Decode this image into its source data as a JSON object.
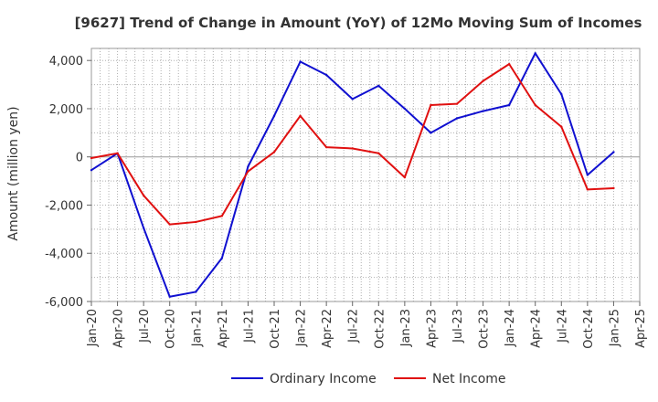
{
  "chart_data": {
    "type": "line",
    "title": "[9627]  Trend of Change in Amount (YoY) of 12Mo Moving Sum of Incomes",
    "xlabel": "",
    "ylabel": "Amount (million yen)",
    "ylim": [
      -6000,
      4500
    ],
    "yticks": [
      -6000,
      -4000,
      -2000,
      0,
      2000,
      4000
    ],
    "ytick_labels": [
      "-6,000",
      "-4,000",
      "-2,000",
      "0",
      "2,000",
      "4,000"
    ],
    "x_tick_labels": [
      "Jan-20",
      "Apr-20",
      "Jul-20",
      "Oct-20",
      "Jan-21",
      "Apr-21",
      "Jul-21",
      "Oct-21",
      "Jan-22",
      "Apr-22",
      "Jul-22",
      "Oct-22",
      "Jan-23",
      "Apr-23",
      "Jul-23",
      "Oct-23",
      "Jan-24",
      "Apr-24",
      "Jul-24",
      "Oct-24",
      "Jan-25",
      "Apr-25"
    ],
    "x": [
      "Jan-20",
      "Apr-20",
      "Jul-20",
      "Oct-20",
      "Jan-21",
      "Apr-21",
      "Jul-21",
      "Oct-21",
      "Jan-22",
      "Apr-22",
      "Jul-22",
      "Oct-22",
      "Jan-23",
      "Apr-23",
      "Jul-23",
      "Oct-23",
      "Jan-24",
      "Apr-24",
      "Jul-24",
      "Oct-24",
      "Jan-25"
    ],
    "grid": true,
    "legend_position": "bottom",
    "series": [
      {
        "name": "Ordinary Income",
        "color": "#1010d0",
        "values": [
          -550,
          150,
          -2950,
          -5800,
          -5600,
          -4200,
          -400,
          1700,
          3950,
          3400,
          2400,
          2950,
          2000,
          1000,
          1600,
          1900,
          2150,
          4300,
          2600,
          -750,
          200
        ]
      },
      {
        "name": "Net Income",
        "color": "#e01010",
        "values": [
          -50,
          150,
          -1600,
          -2800,
          -2700,
          -2450,
          -600,
          200,
          1700,
          400,
          350,
          150,
          -850,
          2150,
          2200,
          3150,
          3850,
          2150,
          1250,
          -1350,
          -1300
        ]
      }
    ]
  }
}
